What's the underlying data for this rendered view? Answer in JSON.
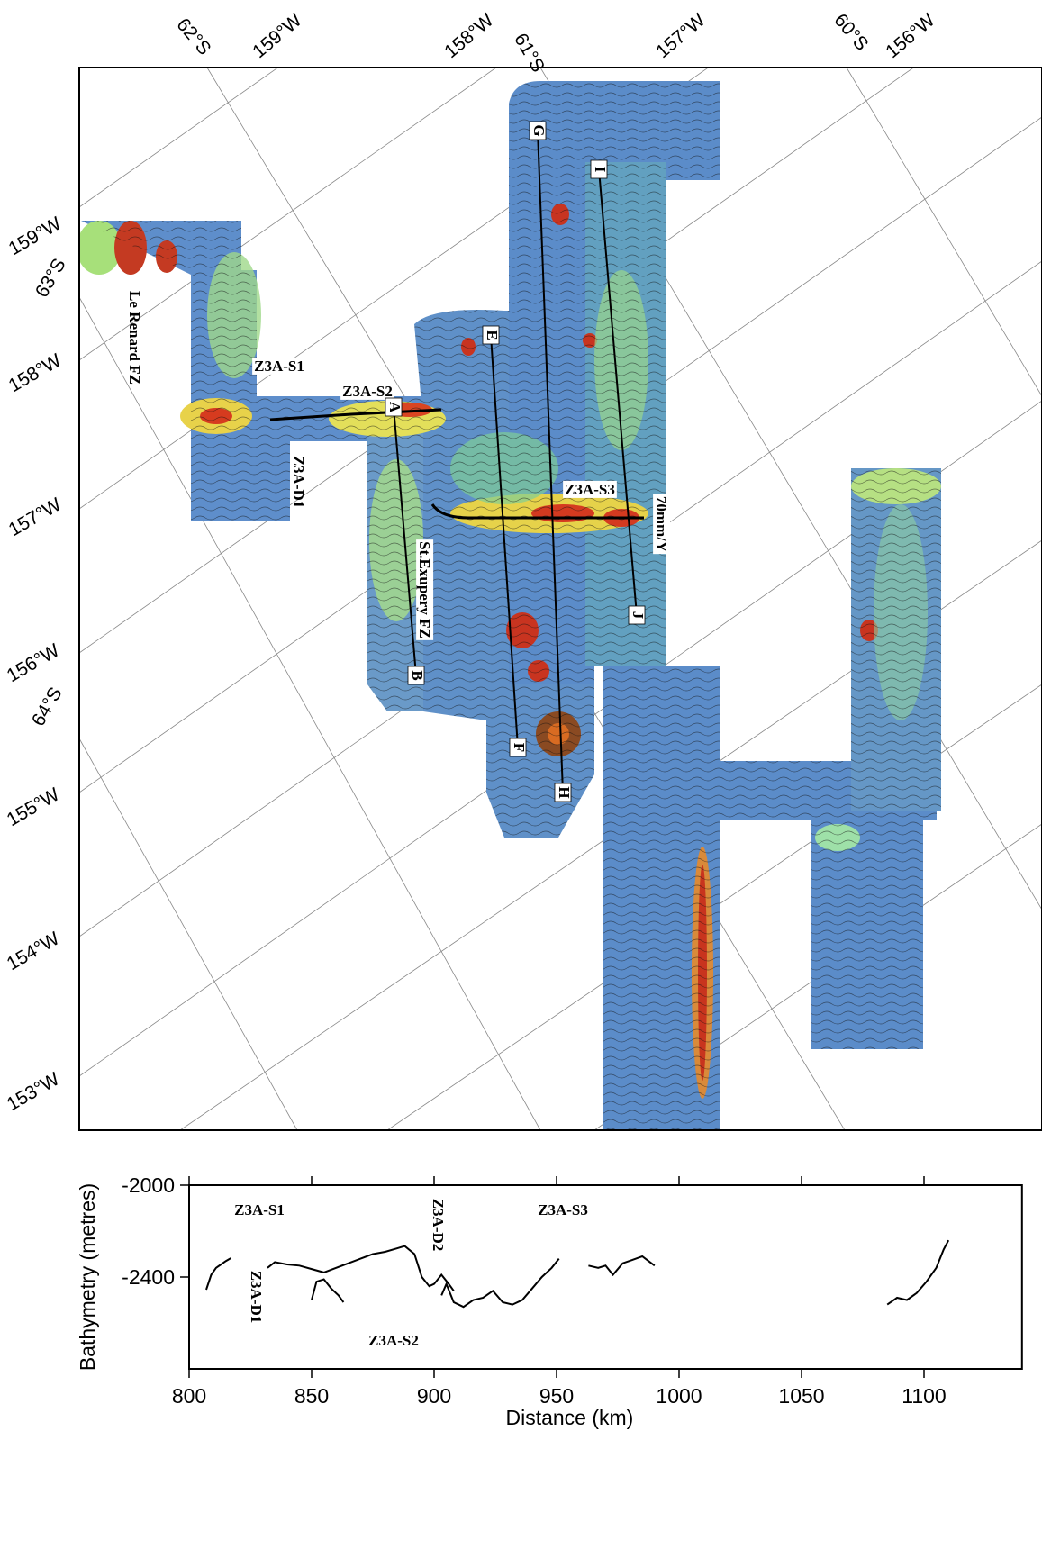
{
  "map": {
    "top_labels": [
      "62°S",
      "159°W",
      "158°W",
      "61°S",
      "157°W",
      "60°S",
      "156°W"
    ],
    "left_labels": [
      "159°W",
      "63°S",
      "158°W",
      "157°W",
      "156°W",
      "64°S",
      "155°W",
      "154°W",
      "153°W"
    ],
    "features": [
      "Le Renard FZ",
      "Z3A-S1",
      "Z3A-S2",
      "Z3A-D1",
      "Z3A-S3",
      "St.Exupery FZ",
      "70mm/Y"
    ],
    "profile_letters": [
      "A",
      "B",
      "E",
      "F",
      "G",
      "H",
      "I",
      "J"
    ]
  },
  "chart_data": {
    "type": "line",
    "ylabel": "Bathymetry (metres)",
    "xlabel": "Distance (km)",
    "xlim": [
      800,
      1140
    ],
    "ylim": [
      -2800,
      -2000
    ],
    "xticks": [
      800,
      850,
      900,
      950,
      1000,
      1050,
      1100
    ],
    "yticks": [
      -2000,
      -2400
    ],
    "color": "#000000",
    "annotations": [
      "Z3A-S1",
      "Z3A-D1",
      "Z3A-S2",
      "Z3A-D2",
      "Z3A-S3"
    ],
    "x": [
      807,
      809,
      811,
      813,
      815,
      817,
      820,
      832,
      835,
      840,
      845,
      850,
      855,
      860,
      865,
      870,
      875,
      880,
      885,
      888,
      892,
      895,
      898,
      900,
      903,
      906,
      908,
      909,
      850,
      852,
      855,
      858,
      861,
      863,
      864,
      903,
      905,
      908,
      912,
      916,
      920,
      924,
      928,
      932,
      936,
      940,
      944,
      948,
      951,
      955,
      963,
      967,
      970,
      973,
      977,
      981,
      985,
      990,
      995,
      1085,
      1089,
      1093,
      1097,
      1101,
      1105,
      1108,
      1110
    ],
    "values": [
      -2455,
      -2390,
      -2360,
      -2345,
      -2330,
      -2318,
      null,
      -2360,
      -2335,
      -2345,
      -2350,
      -2365,
      -2380,
      -2360,
      -2340,
      -2320,
      -2300,
      -2290,
      -2275,
      -2265,
      -2300,
      -2400,
      -2440,
      -2430,
      -2390,
      -2430,
      -2460,
      null,
      -2500,
      -2420,
      -2410,
      -2450,
      -2480,
      -2510,
      null,
      -2480,
      -2430,
      -2510,
      -2530,
      -2500,
      -2490,
      -2460,
      -2510,
      -2520,
      -2500,
      -2450,
      -2400,
      -2360,
      -2320,
      null,
      -2350,
      -2360,
      -2350,
      -2390,
      -2340,
      -2325,
      -2310,
      -2350,
      null,
      -2520,
      -2490,
      -2500,
      -2470,
      -2420,
      -2360,
      -2280,
      -2240
    ]
  }
}
